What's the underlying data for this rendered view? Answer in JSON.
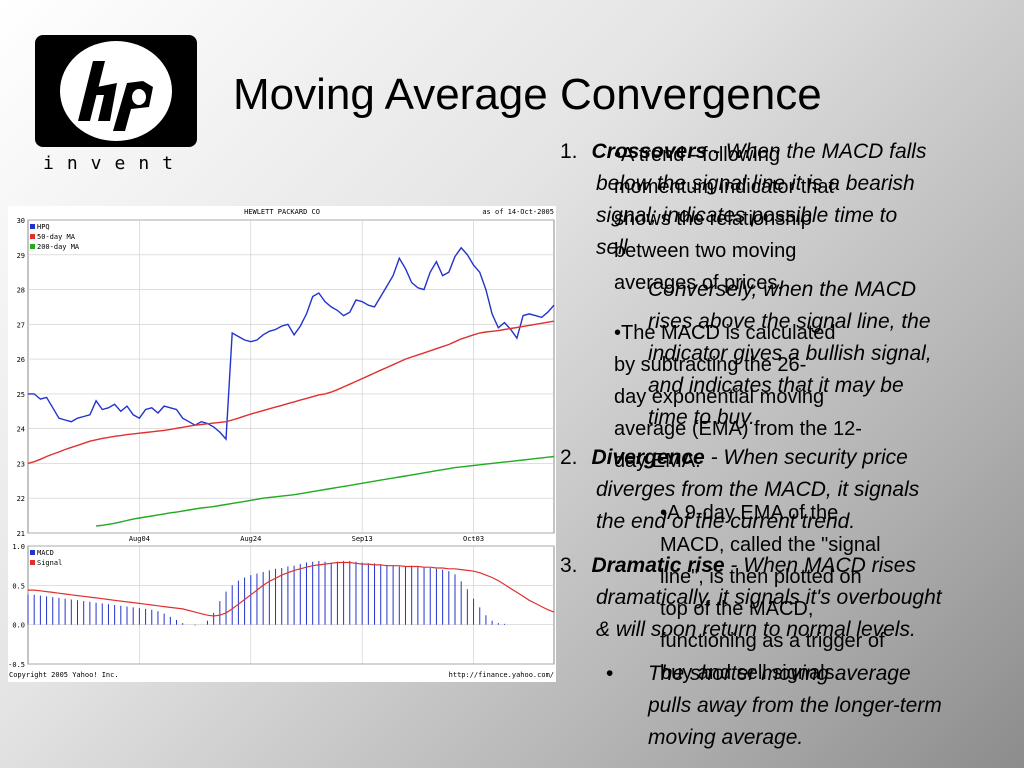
{
  "slide": {
    "title": "Moving Average Convergence",
    "logo_text": "invent"
  },
  "text_layer_a": [
    {
      "num": "1.",
      "lead": "Crossovers",
      "rest": " - When the MACD falls"
    },
    {
      "line": "below the signal line it is a bearish"
    },
    {
      "line": "signal; indicates possible time to"
    },
    {
      "line": "sell"
    },
    {
      "line": "Conversely, when the MACD"
    },
    {
      "line": "rises above the signal line, the"
    },
    {
      "line": "indicator gives a bullish signal,"
    },
    {
      "line": "and indicates that it may be"
    },
    {
      "line": "time to buy."
    },
    {
      "num": "2.",
      "lead": "Divergence",
      "rest": " - When security price"
    },
    {
      "line": "diverges from the MACD, it signals"
    },
    {
      "line": "the end of the current trend."
    },
    {
      "num": "3.",
      "lead": "Dramatic rise",
      "rest": " - When MACD rises"
    },
    {
      "line": "dramatically, it signals it's overbought"
    },
    {
      "line": "& will soon return to normal levels."
    },
    {
      "line": "The shorter moving average"
    },
    {
      "line": "pulls away from the longer-term"
    },
    {
      "line": "moving average."
    }
  ],
  "text_layer_b": [
    "•A trend - following",
    "momentum indicator that",
    "shows the relationship",
    "between two moving",
    "averages of prices.",
    "•The MACD is calculated",
    "by subtracting the 26-",
    "day exponential moving",
    "average (EMA) from the 12-",
    "day EMA.",
    "•A 9-day EMA of the",
    "MACD, called the \"signal",
    "line\", is then plotted on",
    "top of the MACD,",
    "functioning as a trigger of",
    "buy and sell signals."
  ],
  "chart_data": [
    {
      "type": "line",
      "title": "HEWLETT PACKARD CO",
      "subtitle": "as of 14-Oct-2005",
      "ylim": [
        21,
        30
      ],
      "yticks": [
        21,
        22,
        23,
        24,
        25,
        26,
        27,
        28,
        29,
        30
      ],
      "xticks": [
        {
          "label": "Aug04",
          "i": 18
        },
        {
          "label": "Aug24",
          "i": 36
        },
        {
          "label": "Sep13",
          "i": 54
        },
        {
          "label": "Oct03",
          "i": 72
        }
      ],
      "n": 86,
      "series": [
        {
          "name": "HPQ",
          "color": "#2233cc",
          "start": 0,
          "values": [
            25.0,
            25.0,
            24.85,
            24.9,
            24.6,
            24.3,
            24.25,
            24.2,
            24.3,
            24.35,
            24.4,
            24.8,
            24.55,
            24.6,
            24.7,
            24.5,
            24.65,
            24.4,
            24.3,
            24.55,
            24.6,
            24.45,
            24.65,
            24.6,
            24.55,
            24.3,
            24.2,
            24.1,
            24.2,
            24.15,
            24.05,
            23.9,
            23.7,
            26.75,
            26.65,
            26.55,
            26.5,
            26.55,
            26.7,
            26.8,
            26.85,
            26.95,
            27.0,
            26.7,
            26.95,
            27.3,
            27.8,
            27.9,
            27.65,
            27.5,
            27.4,
            27.25,
            27.35,
            27.7,
            27.65,
            27.55,
            27.5,
            27.8,
            28.1,
            28.4,
            28.9,
            28.6,
            28.2,
            28.05,
            28.0,
            28.5,
            28.8,
            28.4,
            28.5,
            28.95,
            29.2,
            29.0,
            28.7,
            28.5,
            28.0,
            27.3,
            26.9,
            27.05,
            26.85,
            26.6,
            27.25,
            27.3,
            27.25,
            27.2,
            27.35,
            27.55
          ]
        },
        {
          "name": "50-day MA",
          "color": "#e03030",
          "start": 0,
          "values": [
            23.0,
            23.05,
            23.12,
            23.2,
            23.27,
            23.33,
            23.4,
            23.46,
            23.52,
            23.58,
            23.64,
            23.68,
            23.72,
            23.75,
            23.78,
            23.8,
            23.83,
            23.85,
            23.87,
            23.89,
            23.91,
            23.93,
            23.95,
            23.98,
            24.01,
            24.04,
            24.07,
            24.1,
            24.12,
            24.14,
            24.16,
            24.18,
            24.2,
            24.25,
            24.3,
            24.36,
            24.42,
            24.47,
            24.52,
            24.57,
            24.62,
            24.67,
            24.72,
            24.77,
            24.82,
            24.87,
            24.92,
            24.97,
            25.0,
            25.05,
            25.12,
            25.2,
            25.28,
            25.36,
            25.44,
            25.52,
            25.6,
            25.68,
            25.76,
            25.84,
            25.92,
            26.0,
            26.06,
            26.12,
            26.18,
            26.24,
            26.3,
            26.36,
            26.42,
            26.5,
            26.58,
            26.64,
            26.7,
            26.75,
            26.78,
            26.8,
            26.82,
            26.85,
            26.88,
            26.91,
            26.94,
            26.97,
            27.0,
            27.03,
            27.06,
            27.09
          ]
        },
        {
          "name": "200-day MA",
          "color": "#22aa22",
          "start": 11,
          "values": [
            21.2,
            21.22,
            21.25,
            21.28,
            21.32,
            21.36,
            21.4,
            21.43,
            21.46,
            21.49,
            21.52,
            21.55,
            21.58,
            21.6,
            21.63,
            21.66,
            21.69,
            21.72,
            21.74,
            21.76,
            21.79,
            21.82,
            21.85,
            21.88,
            21.91,
            21.94,
            21.97,
            22.0,
            22.02,
            22.04,
            22.06,
            22.08,
            22.1,
            22.13,
            22.16,
            22.19,
            22.22,
            22.25,
            22.28,
            22.31,
            22.34,
            22.37,
            22.4,
            22.43,
            22.46,
            22.49,
            22.52,
            22.55,
            22.58,
            22.61,
            22.64,
            22.67,
            22.7,
            22.73,
            22.76,
            22.79,
            22.82,
            22.85,
            22.88,
            22.9,
            22.92,
            22.94,
            22.96,
            22.98,
            23.0,
            23.02,
            23.04,
            23.06,
            23.08,
            23.1,
            23.12,
            23.14,
            23.16,
            23.18,
            23.2
          ]
        }
      ]
    },
    {
      "type": "bar",
      "ylim": [
        -0.5,
        1.0
      ],
      "yticks": [
        "1.0",
        "0.5",
        "0.0",
        "-0.5"
      ],
      "yvalues": [
        1.0,
        0.5,
        0.0,
        -0.5
      ],
      "n": 86,
      "series": [
        {
          "name": "MACD",
          "color": "#2233cc",
          "kind": "bars",
          "values": [
            0.38,
            0.38,
            0.37,
            0.36,
            0.35,
            0.34,
            0.33,
            0.32,
            0.31,
            0.3,
            0.29,
            0.28,
            0.27,
            0.26,
            0.25,
            0.24,
            0.23,
            0.22,
            0.21,
            0.2,
            0.19,
            0.17,
            0.14,
            0.1,
            0.06,
            0.02,
            0.0,
            -0.01,
            0.0,
            0.05,
            0.15,
            0.3,
            0.42,
            0.5,
            0.56,
            0.6,
            0.63,
            0.65,
            0.67,
            0.69,
            0.71,
            0.72,
            0.74,
            0.75,
            0.77,
            0.79,
            0.8,
            0.81,
            0.8,
            0.79,
            0.8,
            0.81,
            0.81,
            0.8,
            0.79,
            0.78,
            0.78,
            0.77,
            0.76,
            0.75,
            0.74,
            0.74,
            0.75,
            0.74,
            0.73,
            0.72,
            0.71,
            0.7,
            0.68,
            0.64,
            0.55,
            0.45,
            0.33,
            0.22,
            0.12,
            0.05,
            0.02,
            0.01,
            0.0,
            0.0,
            0.0,
            0.0,
            0.0,
            0.0,
            0.0,
            0.0
          ]
        },
        {
          "name": "Signal",
          "color": "#e03030",
          "kind": "line",
          "values": [
            0.44,
            0.44,
            0.43,
            0.42,
            0.41,
            0.4,
            0.39,
            0.38,
            0.37,
            0.36,
            0.35,
            0.34,
            0.33,
            0.32,
            0.31,
            0.3,
            0.29,
            0.28,
            0.27,
            0.26,
            0.25,
            0.24,
            0.23,
            0.22,
            0.21,
            0.2,
            0.18,
            0.16,
            0.14,
            0.12,
            0.11,
            0.12,
            0.15,
            0.2,
            0.26,
            0.32,
            0.38,
            0.44,
            0.5,
            0.55,
            0.59,
            0.63,
            0.66,
            0.69,
            0.71,
            0.73,
            0.75,
            0.76,
            0.77,
            0.78,
            0.79,
            0.79,
            0.79,
            0.78,
            0.77,
            0.77,
            0.76,
            0.76,
            0.75,
            0.75,
            0.75,
            0.74,
            0.74,
            0.74,
            0.73,
            0.73,
            0.72,
            0.72,
            0.71,
            0.71,
            0.7,
            0.69,
            0.68,
            0.66,
            0.63,
            0.6,
            0.56,
            0.51,
            0.46,
            0.41,
            0.36,
            0.31,
            0.27,
            0.23,
            0.19,
            0.16
          ]
        }
      ]
    }
  ],
  "chart_footer": {
    "left": "Copyright 2005 Yahoo! Inc.",
    "right": "http://finance.yahoo.com/"
  },
  "colors": {
    "hpq": "#2233cc",
    "ma50": "#e03030",
    "ma200": "#22aa22"
  }
}
